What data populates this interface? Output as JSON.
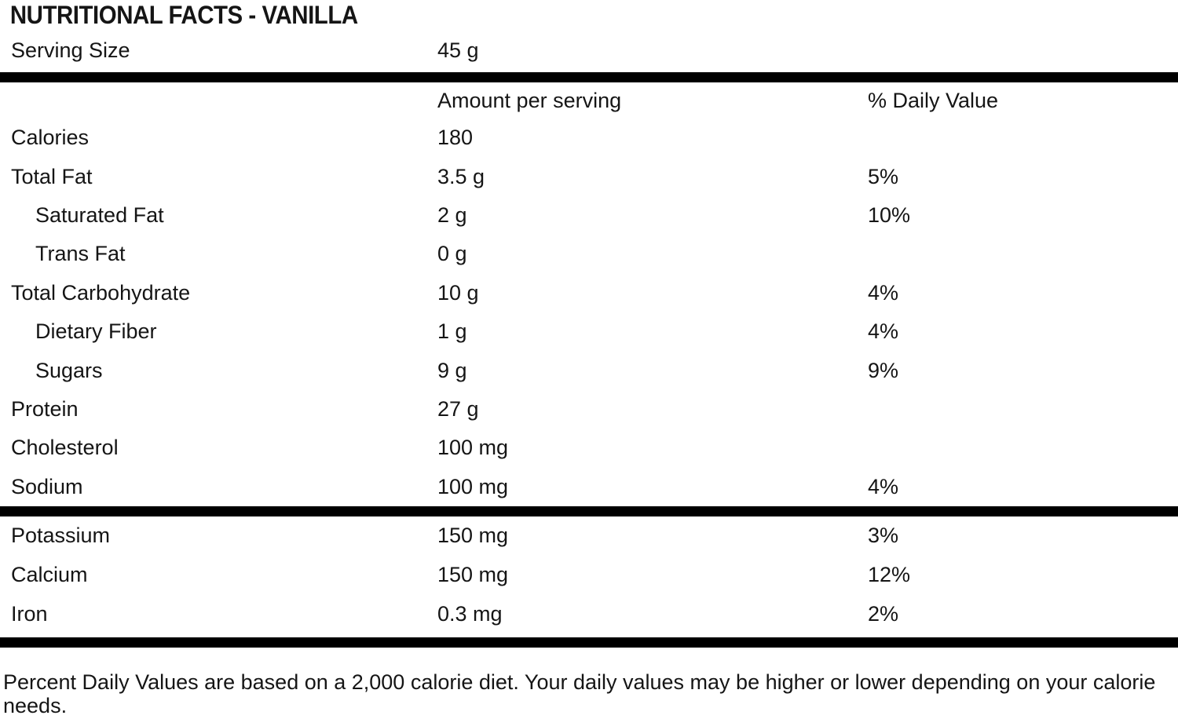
{
  "title": "NUTRITIONAL FACTS - VANILLA",
  "serving": {
    "label": "Serving Size",
    "value": "45 g"
  },
  "columns": {
    "amount": "Amount per serving",
    "daily_value": "% Daily Value"
  },
  "rows": [
    {
      "label": "Calories",
      "amount": "180",
      "dv": "",
      "indent": false
    },
    {
      "label": "Total Fat",
      "amount": "3.5 g",
      "dv": "5%",
      "indent": false
    },
    {
      "label": "Saturated Fat",
      "amount": "2 g",
      "dv": "10%",
      "indent": true
    },
    {
      "label": "Trans Fat",
      "amount": "0 g",
      "dv": "",
      "indent": true
    },
    {
      "label": "Total Carbohydrate",
      "amount": "10 g",
      "dv": "4%",
      "indent": false
    },
    {
      "label": "Dietary Fiber",
      "amount": "1 g",
      "dv": "4%",
      "indent": true
    },
    {
      "label": "Sugars",
      "amount": "9 g",
      "dv": "9%",
      "indent": true
    },
    {
      "label": "Protein",
      "amount": "27 g",
      "dv": "",
      "indent": false
    },
    {
      "label": "Cholesterol",
      "amount": "100 mg",
      "dv": "",
      "indent": false
    },
    {
      "label": "Sodium",
      "amount": "100 mg",
      "dv": "4%",
      "indent": false
    }
  ],
  "minerals": [
    {
      "label": "Potassium",
      "amount": "150 mg",
      "dv": "3%"
    },
    {
      "label": "Calcium",
      "amount": "150 mg",
      "dv": "12%"
    },
    {
      "label": "Iron",
      "amount": "0.3 mg",
      "dv": "2%"
    }
  ],
  "footnote": "Percent Daily Values are based on a 2,000 calorie diet. Your daily values may be higher or lower depending on your calorie needs.",
  "colors": {
    "text": "#151515",
    "bar": "#000000",
    "background": "#ffffff"
  }
}
